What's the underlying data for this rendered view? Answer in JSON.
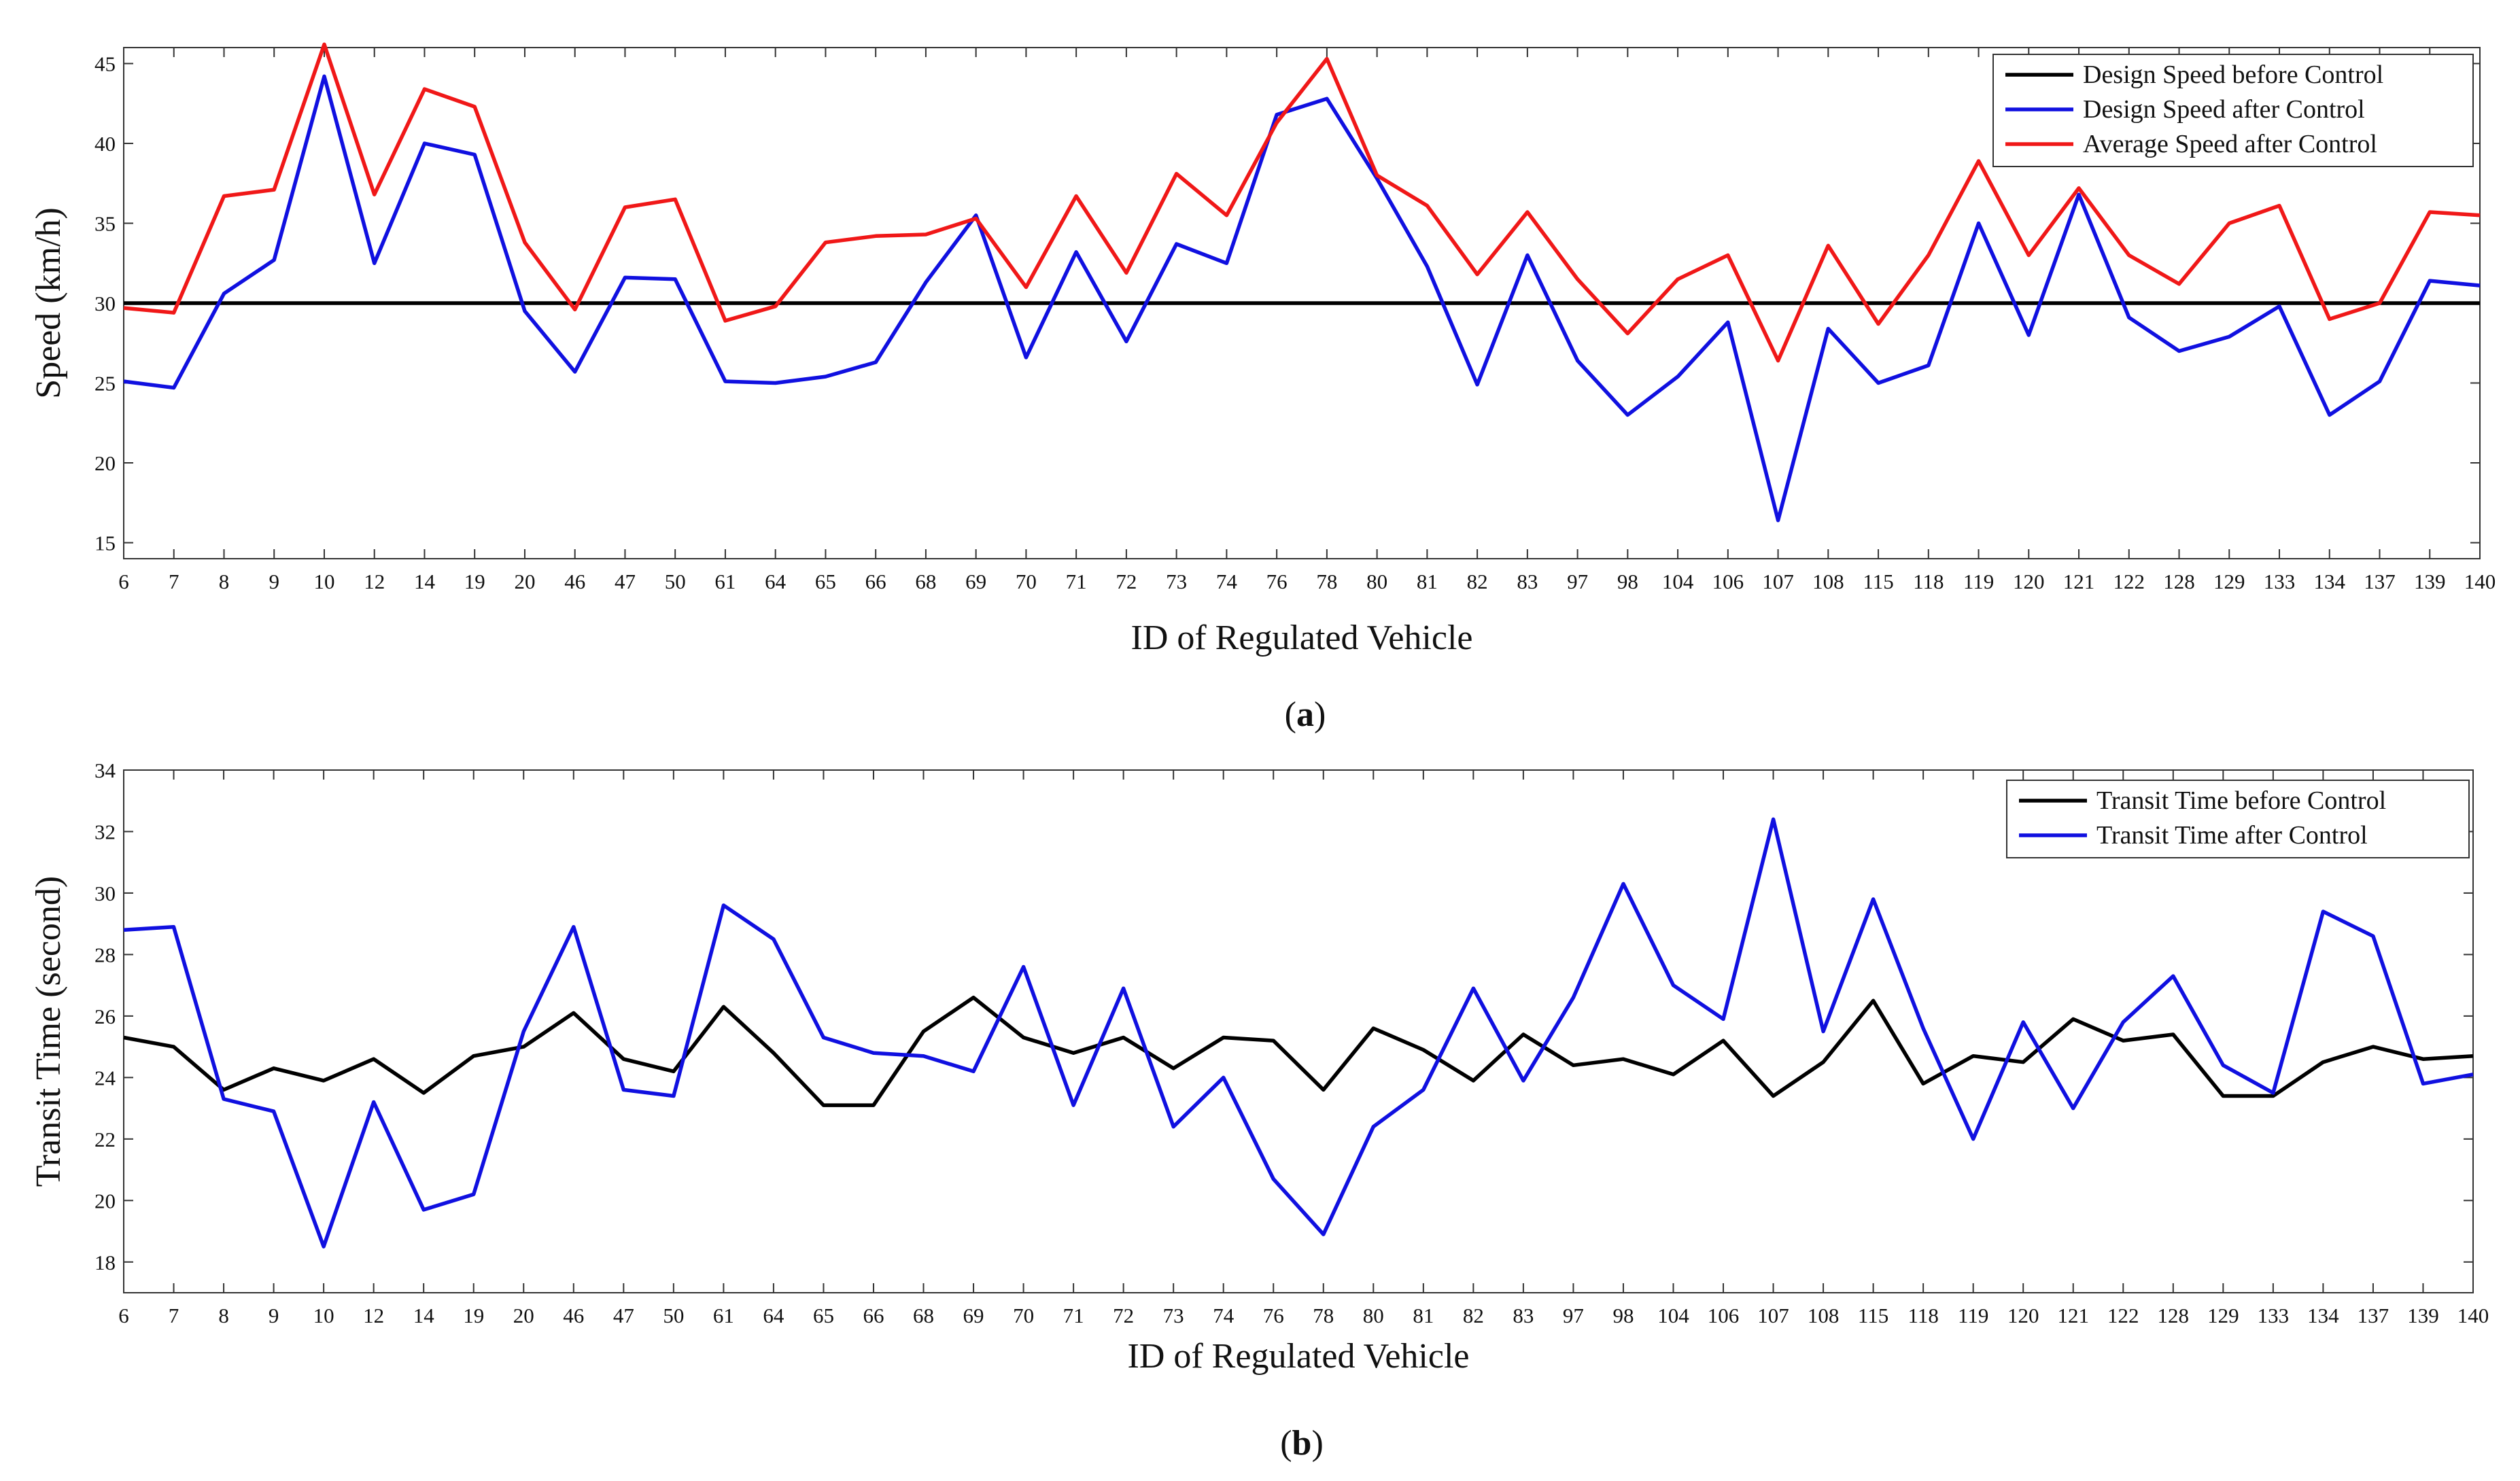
{
  "chart_data": [
    {
      "type": "line",
      "panel": "a",
      "caption_open": "(",
      "caption_letter": "a",
      "caption_close": ")",
      "xlabel": "ID of Regulated Vehicle",
      "ylabel": "Speed (km/h)",
      "ylim": [
        14,
        46
      ],
      "yticks": [
        15,
        20,
        25,
        30,
        35,
        40,
        45
      ],
      "categories": [
        "6",
        "7",
        "8",
        "9",
        "10",
        "12",
        "14",
        "19",
        "20",
        "46",
        "47",
        "50",
        "61",
        "64",
        "65",
        "66",
        "68",
        "69",
        "70",
        "71",
        "72",
        "73",
        "74",
        "76",
        "78",
        "80",
        "81",
        "82",
        "83",
        "97",
        "98",
        "104",
        "106",
        "107",
        "108",
        "115",
        "118",
        "119",
        "120",
        "121",
        "122",
        "128",
        "129",
        "133",
        "134",
        "137",
        "139",
        "140"
      ],
      "legend_position": "top-right",
      "series": [
        {
          "name": "Design Speed before Control",
          "color": "#000000",
          "values": [
            30,
            30,
            30,
            30,
            30,
            30,
            30,
            30,
            30,
            30,
            30,
            30,
            30,
            30,
            30,
            30,
            30,
            30,
            30,
            30,
            30,
            30,
            30,
            30,
            30,
            30,
            30,
            30,
            30,
            30,
            30,
            30,
            30,
            30,
            30,
            30,
            30,
            30,
            30,
            30,
            30,
            30,
            30,
            30,
            30,
            30,
            30,
            30
          ]
        },
        {
          "name": "Design Speed after Control",
          "color": "#1010e0",
          "values": [
            25.1,
            24.7,
            30.6,
            32.7,
            44.2,
            32.5,
            40.0,
            39.3,
            29.5,
            25.7,
            31.6,
            31.5,
            25.1,
            25.0,
            25.4,
            26.3,
            31.3,
            35.5,
            26.6,
            33.2,
            27.6,
            33.7,
            32.5,
            41.8,
            42.8,
            37.8,
            32.3,
            24.9,
            33.0,
            26.4,
            23.0,
            25.4,
            28.8,
            16.4,
            28.4,
            25.0,
            26.1,
            35.0,
            28.0,
            36.8,
            29.1,
            27.0,
            27.9,
            29.8,
            23.0,
            25.1,
            31.4,
            31.1
          ]
        },
        {
          "name": "Average Speed after Control",
          "color": "#f01818",
          "values": [
            29.7,
            29.4,
            36.7,
            37.1,
            46.2,
            36.8,
            43.4,
            42.3,
            33.8,
            29.6,
            36.0,
            36.5,
            28.9,
            29.8,
            33.8,
            34.2,
            34.3,
            35.3,
            31.0,
            36.7,
            31.9,
            38.1,
            35.5,
            41.3,
            45.3,
            38.0,
            36.1,
            31.8,
            35.7,
            31.5,
            28.1,
            31.5,
            33.0,
            26.4,
            33.6,
            28.7,
            33.0,
            38.9,
            33.0,
            37.2,
            33.0,
            31.2,
            35.0,
            36.1,
            29.0,
            30.0,
            35.7,
            35.5
          ]
        }
      ]
    },
    {
      "type": "line",
      "panel": "b",
      "caption_open": "(",
      "caption_letter": "b",
      "caption_close": ")",
      "xlabel": "ID of Regulated Vehicle",
      "ylabel": "Transit Time (second)",
      "ylim": [
        17,
        34
      ],
      "yticks": [
        18,
        20,
        22,
        24,
        26,
        28,
        30,
        32,
        34
      ],
      "categories": [
        "6",
        "7",
        "8",
        "9",
        "10",
        "12",
        "14",
        "19",
        "20",
        "46",
        "47",
        "50",
        "61",
        "64",
        "65",
        "66",
        "68",
        "69",
        "70",
        "71",
        "72",
        "73",
        "74",
        "76",
        "78",
        "80",
        "81",
        "82",
        "83",
        "97",
        "98",
        "104",
        "106",
        "107",
        "108",
        "115",
        "118",
        "119",
        "120",
        "121",
        "122",
        "128",
        "129",
        "133",
        "134",
        "137",
        "139",
        "140"
      ],
      "legend_position": "top-right",
      "series": [
        {
          "name": "Transit Time before Control",
          "color": "#000000",
          "values": [
            25.3,
            25.0,
            23.6,
            24.3,
            23.9,
            24.6,
            23.5,
            24.7,
            25.0,
            26.1,
            24.6,
            24.2,
            26.3,
            24.8,
            23.1,
            23.1,
            25.5,
            26.6,
            25.3,
            24.8,
            25.3,
            24.3,
            25.3,
            25.2,
            23.6,
            25.6,
            24.9,
            23.9,
            25.4,
            24.4,
            24.6,
            24.1,
            25.2,
            23.4,
            24.5,
            26.5,
            23.8,
            24.7,
            24.5,
            25.9,
            25.2,
            25.4,
            23.4,
            23.4,
            24.5,
            25.0,
            24.6,
            24.7
          ]
        },
        {
          "name": "Transit Time after Control",
          "color": "#1010e0",
          "values": [
            28.8,
            28.9,
            23.3,
            22.9,
            18.5,
            23.2,
            19.7,
            20.2,
            25.5,
            28.9,
            23.6,
            23.4,
            29.6,
            28.5,
            25.3,
            24.8,
            24.7,
            24.2,
            27.6,
            23.1,
            26.9,
            22.4,
            24.0,
            20.7,
            18.9,
            22.4,
            23.6,
            26.9,
            23.9,
            26.6,
            30.3,
            27.0,
            25.9,
            32.4,
            25.5,
            29.8,
            25.6,
            22.0,
            25.8,
            23.0,
            25.8,
            27.3,
            24.4,
            23.5,
            29.4,
            28.6,
            23.8,
            24.1
          ]
        }
      ]
    }
  ]
}
